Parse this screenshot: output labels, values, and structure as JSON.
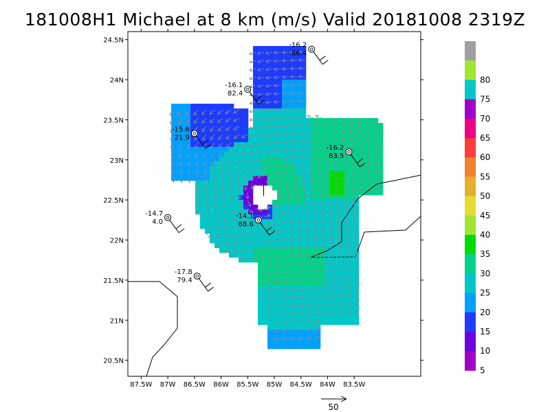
{
  "title": "181008H1 Michael at 8 km (m/s) Valid 20181008 2319Z",
  "map": {
    "lon_range": [
      -87.75,
      -82.25
    ],
    "lat_range": [
      20.3,
      24.6
    ],
    "x_ticks": [
      {
        "lon": -87.5,
        "label": "87.5W"
      },
      {
        "lon": -87,
        "label": "87W"
      },
      {
        "lon": -86.5,
        "label": "86.5W"
      },
      {
        "lon": -86,
        "label": "86W"
      },
      {
        "lon": -85.5,
        "label": "85.5W"
      },
      {
        "lon": -85,
        "label": "85W"
      },
      {
        "lon": -84.5,
        "label": "84.5W"
      },
      {
        "lon": -84,
        "label": "84W"
      },
      {
        "lon": -83.5,
        "label": "83.5W"
      }
    ],
    "y_ticks": [
      {
        "lat": 20.5,
        "label": "20.5N"
      },
      {
        "lat": 21,
        "label": "21N"
      },
      {
        "lat": 21.5,
        "label": "21.5N"
      },
      {
        "lat": 22,
        "label": "22N"
      },
      {
        "lat": 22.5,
        "label": "22.5N"
      },
      {
        "lat": 23,
        "label": "23N"
      },
      {
        "lat": 23.5,
        "label": "23.5N"
      },
      {
        "lat": 24,
        "label": "24N"
      },
      {
        "lat": 24.5,
        "label": "24.5N"
      }
    ],
    "storm_center": {
      "lon": -85.2,
      "lat": 22.55
    },
    "observations": [
      {
        "lon": -84.3,
        "lat": 24.38,
        "temp": "-16.2",
        "val": "86.4"
      },
      {
        "lon": -85.5,
        "lat": 23.88,
        "temp": "-16.1",
        "val": "82.4"
      },
      {
        "lon": -86.5,
        "lat": 23.33,
        "temp": "-15.6",
        "val": "21.9"
      },
      {
        "lon": -83.6,
        "lat": 23.1,
        "temp": "-16.2",
        "val": "83.5"
      },
      {
        "lon": -87.0,
        "lat": 22.28,
        "temp": "-14.7",
        "val": "4.0"
      },
      {
        "lon": -85.3,
        "lat": 22.25,
        "temp": "-14.1",
        "val": "88.6"
      },
      {
        "lon": -86.45,
        "lat": 21.55,
        "temp": "-17.8",
        "val": "79.4"
      }
    ],
    "reference_vector_label": "50"
  },
  "colorbar": {
    "levels": [
      {
        "label": "",
        "color": "#a0a0a0"
      },
      {
        "label": "80",
        "color": "#a0e632"
      },
      {
        "label": "75",
        "color": "#00c8c8"
      },
      {
        "label": "70",
        "color": "#a000c8"
      },
      {
        "label": "65",
        "color": "#f00082"
      },
      {
        "label": "60",
        "color": "#fa3c3c"
      },
      {
        "label": "55",
        "color": "#f08228"
      },
      {
        "label": "50",
        "color": "#e6af2d"
      },
      {
        "label": "45",
        "color": "#e6dc32"
      },
      {
        "label": "40",
        "color": "#a0e632"
      },
      {
        "label": "35",
        "color": "#00dc00"
      },
      {
        "label": "30",
        "color": "#00d28c"
      },
      {
        "label": "25",
        "color": "#00c8c8"
      },
      {
        "label": "20",
        "color": "#00a0ff"
      },
      {
        "label": "15",
        "color": "#1e3cff"
      },
      {
        "label": "10",
        "color": "#6e00dc"
      },
      {
        "label": "5",
        "color": "#a000c8"
      }
    ]
  }
}
